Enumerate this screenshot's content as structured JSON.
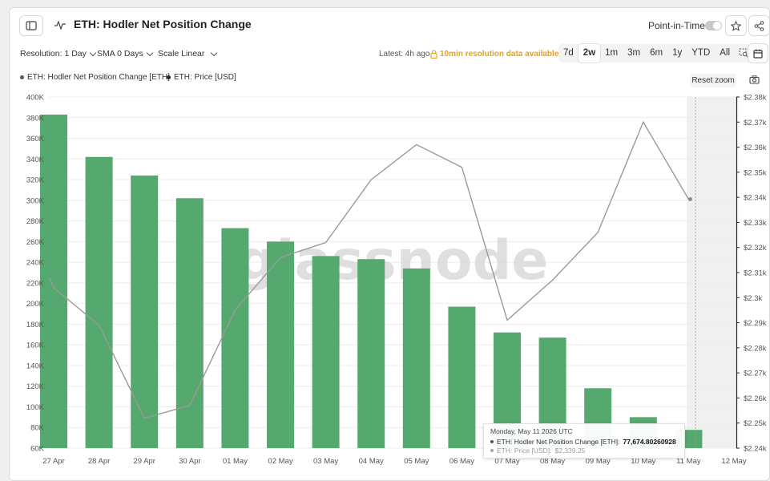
{
  "header": {
    "title": "ETH: Hodler Net Position Change",
    "point_in_time_label": "Point-in-Time"
  },
  "toolbar": {
    "resolution_label": "Resolution: 1 Day",
    "sma_label": "SMA 0 Days",
    "scale_label": "Scale Linear",
    "latest_text": "Latest: 4h ago",
    "resolution_notice": "10min resolution data available",
    "ranges": [
      "7d",
      "2w",
      "1m",
      "3m",
      "6m",
      "1y",
      "YTD",
      "All"
    ],
    "active_range": "2w"
  },
  "legend": {
    "items": [
      "ETH: Hodler Net Position Change [ETH]",
      "ETH: Price [USD]"
    ]
  },
  "reset_zoom_label": "Reset zoom",
  "watermark": "glassnode",
  "tooltip": {
    "date": "Monday, May 11 2026 UTC",
    "row1_label": "ETH: Hodler Net Position Change [ETH]:",
    "row1_value": "77,674.80260928",
    "row2_label": "ETH: Price [USD]:",
    "row2_value": "$2,339.25"
  },
  "chart_data": {
    "type": "bar",
    "categories": [
      "27 Apr",
      "28 Apr",
      "29 Apr",
      "30 Apr",
      "01 May",
      "02 May",
      "03 May",
      "04 May",
      "05 May",
      "06 May",
      "07 May",
      "08 May",
      "09 May",
      "10 May",
      "11 May",
      "12 May"
    ],
    "series": [
      {
        "name": "ETH: Hodler Net Position Change [ETH]",
        "type": "bar",
        "axis": "left",
        "color": "#55a96e",
        "values": [
          383000,
          342000,
          324000,
          302000,
          273000,
          260000,
          246000,
          243000,
          234000,
          197000,
          172000,
          167000,
          118000,
          90000,
          77674.80260928,
          null
        ]
      },
      {
        "name": "ETH: Price [USD]",
        "type": "line",
        "axis": "right",
        "color": "#9a9a9a",
        "values": [
          2304,
          2289,
          2252,
          2257,
          2295,
          2316,
          2322,
          2347,
          2361,
          2352,
          2291,
          2307,
          2326,
          2370,
          2339.25,
          null
        ]
      }
    ],
    "y_left": {
      "ticks": [
        "400K",
        "380K",
        "360K",
        "340K",
        "320K",
        "300K",
        "280K",
        "260K",
        "240K",
        "220K",
        "200K",
        "180K",
        "160K",
        "140K",
        "120K",
        "100K",
        "80K",
        "60K"
      ],
      "range": [
        60000,
        400000
      ]
    },
    "y_right": {
      "ticks": [
        "$2.38k",
        "$2.37k",
        "$2.36k",
        "$2.35k",
        "$2.34k",
        "$2.33k",
        "$2.32k",
        "$2.31k",
        "$2.3k",
        "$2.29k",
        "$2.28k",
        "$2.27k",
        "$2.26k",
        "$2.25k",
        "$2.24k"
      ],
      "range": [
        2240,
        2380
      ]
    },
    "grid": true,
    "legend_position": "top-left"
  }
}
